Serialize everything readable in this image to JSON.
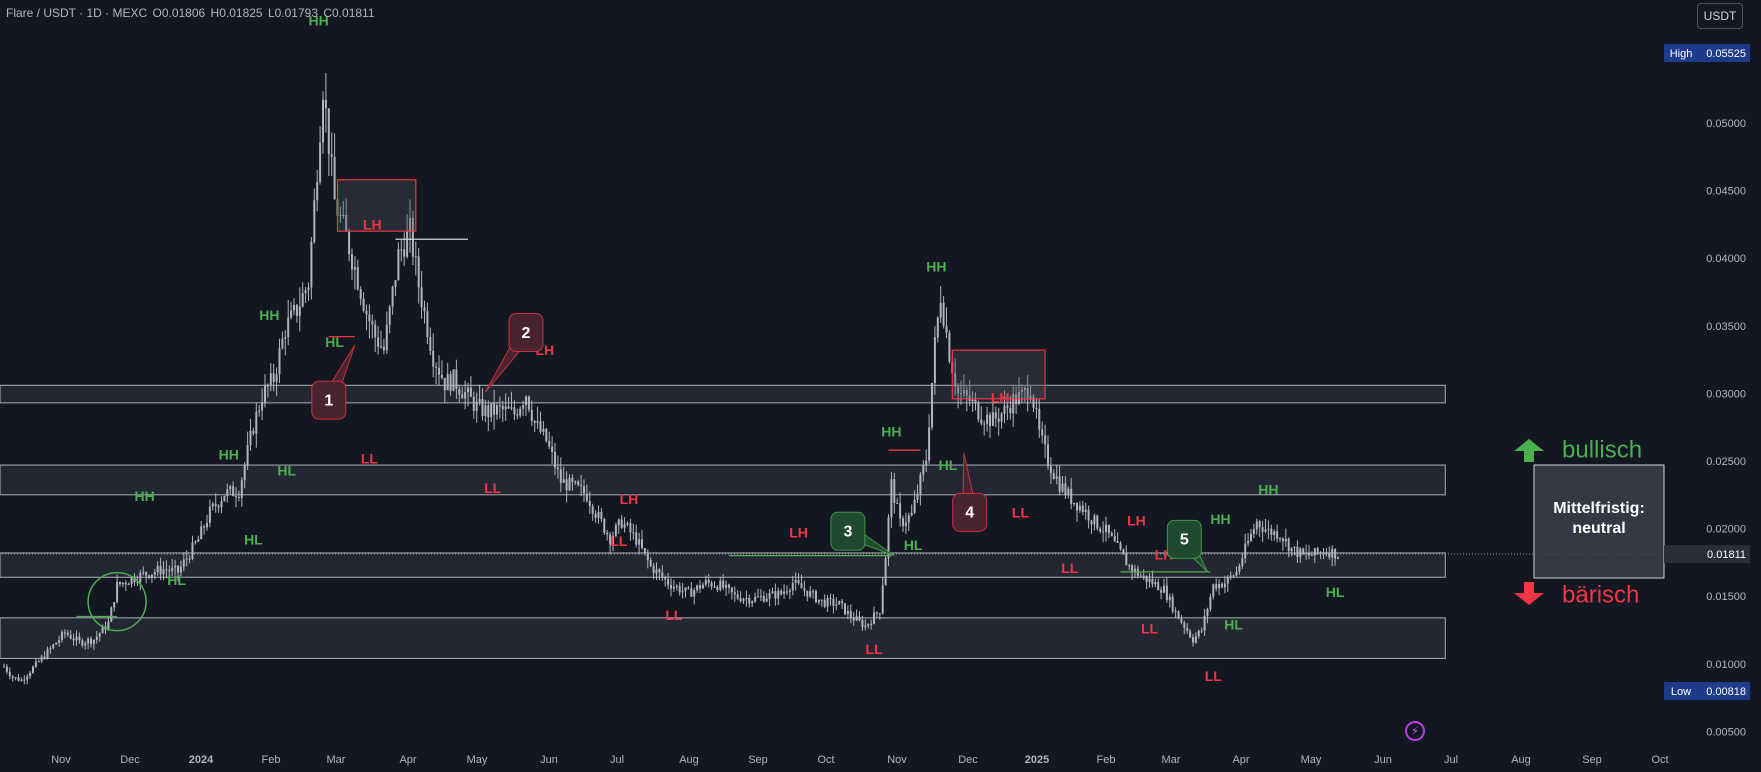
{
  "header": {
    "symbol": "Flare / USDT · 1D · MEXC",
    "open": "O0.01806",
    "high": "H0.01825",
    "low": "L0.01793",
    "close": "C0.01811"
  },
  "currency_button": "USDT",
  "badges": {
    "high_label": "High",
    "high_value": "0.05525",
    "low_label": "Low",
    "low_value": "0.00818",
    "last_price": "0.01811"
  },
  "colors": {
    "background": "#131722",
    "candle": "#b2b5be",
    "bull": "#4caf50",
    "bear": "#f23645",
    "zone": "#2a2e39",
    "callout_bear": "#4a2330",
    "callout_bull": "#1f4a2e"
  },
  "chart_data": {
    "type": "candlestick",
    "title": "Flare / USDT · 1D · MEXC",
    "ylim": [
      0.0046,
      0.0585
    ],
    "y_ticks": [
      "0.05000",
      "0.04500",
      "0.04000",
      "0.03500",
      "0.03000",
      "0.02500",
      "0.02000",
      "0.01500",
      "0.01000",
      "0.00500"
    ],
    "x_ticks": [
      "Nov",
      "Dec",
      "2024",
      "Feb",
      "Mar",
      "Apr",
      "May",
      "Jun",
      "Jul",
      "Aug",
      "Sep",
      "Oct",
      "Nov",
      "Dec",
      "2025",
      "Feb",
      "Mar",
      "Apr",
      "May",
      "Jun",
      "Jul",
      "Aug",
      "Sep",
      "Oct"
    ],
    "price_path": [
      [
        0,
        0.0098
      ],
      [
        3,
        0.009
      ],
      [
        6,
        0.0088
      ],
      [
        10,
        0.0097
      ],
      [
        16,
        0.0111
      ],
      [
        21,
        0.0123
      ],
      [
        26,
        0.0116
      ],
      [
        31,
        0.0118
      ],
      [
        36,
        0.013
      ],
      [
        39,
        0.0158
      ],
      [
        43,
        0.0162
      ],
      [
        48,
        0.0166
      ],
      [
        55,
        0.017
      ],
      [
        60,
        0.0168
      ],
      [
        67,
        0.0192
      ],
      [
        71,
        0.0212
      ],
      [
        76,
        0.0226
      ],
      [
        81,
        0.0228
      ],
      [
        86,
        0.0276
      ],
      [
        89,
        0.0298
      ],
      [
        93,
        0.0311
      ],
      [
        97,
        0.0348
      ],
      [
        101,
        0.0362
      ],
      [
        105,
        0.0382
      ],
      [
        108,
        0.0468
      ],
      [
        110,
        0.0528
      ],
      [
        114,
        0.0442
      ],
      [
        118,
        0.0416
      ],
      [
        122,
        0.0385
      ],
      [
        125,
        0.036
      ],
      [
        128,
        0.0342
      ],
      [
        131,
        0.0332
      ],
      [
        136,
        0.0402
      ],
      [
        140,
        0.042
      ],
      [
        143,
        0.038
      ],
      [
        148,
        0.0328
      ],
      [
        152,
        0.0308
      ],
      [
        155,
        0.031
      ],
      [
        159,
        0.03
      ],
      [
        163,
        0.029
      ],
      [
        167,
        0.0286
      ],
      [
        171,
        0.0288
      ],
      [
        176,
        0.0285
      ],
      [
        180,
        0.03
      ],
      [
        183,
        0.0278
      ],
      [
        187,
        0.0265
      ],
      [
        192,
        0.0235
      ],
      [
        197,
        0.023
      ],
      [
        201,
        0.0225
      ],
      [
        204,
        0.0212
      ],
      [
        209,
        0.0193
      ],
      [
        213,
        0.0205
      ],
      [
        218,
        0.0192
      ],
      [
        223,
        0.0172
      ],
      [
        229,
        0.016
      ],
      [
        236,
        0.0152
      ],
      [
        242,
        0.016
      ],
      [
        247,
        0.0158
      ],
      [
        252,
        0.015
      ],
      [
        258,
        0.0148
      ],
      [
        263,
        0.015
      ],
      [
        268,
        0.0152
      ],
      [
        272,
        0.016
      ],
      [
        277,
        0.0153
      ],
      [
        282,
        0.0146
      ],
      [
        288,
        0.0144
      ],
      [
        292,
        0.0135
      ],
      [
        297,
        0.0128
      ],
      [
        302,
        0.014
      ],
      [
        304,
        0.018
      ],
      [
        306,
        0.0233
      ],
      [
        309,
        0.0204
      ],
      [
        313,
        0.021
      ],
      [
        318,
        0.0252
      ],
      [
        321,
        0.0336
      ],
      [
        323,
        0.0373
      ],
      [
        326,
        0.033
      ],
      [
        329,
        0.03
      ],
      [
        333,
        0.0295
      ],
      [
        337,
        0.0284
      ],
      [
        341,
        0.028
      ],
      [
        345,
        0.0287
      ],
      [
        348,
        0.0295
      ],
      [
        351,
        0.0298
      ],
      [
        354,
        0.0305
      ],
      [
        357,
        0.027
      ],
      [
        360,
        0.025
      ],
      [
        364,
        0.0233
      ],
      [
        368,
        0.0222
      ],
      [
        372,
        0.0215
      ],
      [
        376,
        0.0205
      ],
      [
        380,
        0.0198
      ],
      [
        384,
        0.0185
      ],
      [
        388,
        0.0172
      ],
      [
        392,
        0.0165
      ],
      [
        396,
        0.016
      ],
      [
        400,
        0.0155
      ],
      [
        404,
        0.0138
      ],
      [
        407,
        0.0128
      ],
      [
        410,
        0.0118
      ],
      [
        413,
        0.0125
      ],
      [
        417,
        0.0158
      ],
      [
        421,
        0.016
      ],
      [
        425,
        0.0168
      ],
      [
        429,
        0.019
      ],
      [
        432,
        0.0205
      ],
      [
        436,
        0.0198
      ],
      [
        440,
        0.0196
      ],
      [
        444,
        0.0185
      ],
      [
        448,
        0.018
      ],
      [
        452,
        0.0181
      ],
      [
        456,
        0.0184
      ],
      [
        460,
        0.0181
      ]
    ],
    "markers": [
      {
        "text": "HH",
        "color": "bull",
        "day": 108.5,
        "price": 0.0575
      },
      {
        "text": "HL",
        "color": "bull",
        "day": 114,
        "price": 0.0337
      },
      {
        "text": "LL",
        "color": "bear",
        "day": 126,
        "price": 0.0251
      },
      {
        "text": "LH",
        "color": "bear",
        "day": 127,
        "price": 0.0424
      },
      {
        "text": "HH",
        "color": "bull",
        "day": 91.5,
        "price": 0.0357
      },
      {
        "text": "HH",
        "color": "bull",
        "day": 77.5,
        "price": 0.0254
      },
      {
        "text": "HL",
        "color": "bull",
        "day": 97.5,
        "price": 0.0242
      },
      {
        "text": "HL",
        "color": "bull",
        "day": 86,
        "price": 0.0191
      },
      {
        "text": "HH",
        "color": "bull",
        "day": 48.5,
        "price": 0.0223
      },
      {
        "text": "HL",
        "color": "bull",
        "day": 59.5,
        "price": 0.0161
      },
      {
        "text": "LL",
        "color": "bear",
        "day": 168.5,
        "price": 0.0229
      },
      {
        "text": "LH",
        "color": "bear",
        "day": 186.5,
        "price": 0.0331
      },
      {
        "text": "LH",
        "color": "bear",
        "day": 215.5,
        "price": 0.0221
      },
      {
        "text": "LL",
        "color": "bear",
        "day": 212,
        "price": 0.019
      },
      {
        "text": "LL",
        "color": "bear",
        "day": 231,
        "price": 0.0135
      },
      {
        "text": "LH",
        "color": "bear",
        "day": 274,
        "price": 0.0196
      },
      {
        "text": "LL",
        "color": "bear",
        "day": 300,
        "price": 0.011
      },
      {
        "text": "HH",
        "color": "bull",
        "day": 306,
        "price": 0.0271
      },
      {
        "text": "HL",
        "color": "bull",
        "day": 313.5,
        "price": 0.0187
      },
      {
        "text": "HH",
        "color": "bull",
        "day": 321.5,
        "price": 0.0393
      },
      {
        "text": "LH",
        "color": "bear",
        "day": 343.5,
        "price": 0.0296
      },
      {
        "text": "HL",
        "color": "bull",
        "day": 325.5,
        "price": 0.0246
      },
      {
        "text": "LL",
        "color": "bear",
        "day": 350.5,
        "price": 0.0211
      },
      {
        "text": "LL",
        "color": "bear",
        "day": 367.5,
        "price": 0.017
      },
      {
        "text": "LH",
        "color": "bear",
        "day": 390.5,
        "price": 0.0205
      },
      {
        "text": "LH",
        "color": "bear",
        "day": 400,
        "price": 0.018
      },
      {
        "text": "LL",
        "color": "bear",
        "day": 395,
        "price": 0.0125
      },
      {
        "text": "LL",
        "color": "bear",
        "day": 417,
        "price": 0.009
      },
      {
        "text": "HH",
        "color": "bull",
        "day": 419.5,
        "price": 0.0206
      },
      {
        "text": "HL",
        "color": "bull",
        "day": 424,
        "price": 0.0128
      },
      {
        "text": "HH",
        "color": "bull",
        "day": 436,
        "price": 0.0228
      },
      {
        "text": "HL",
        "color": "bull",
        "day": 459,
        "price": 0.0152
      }
    ],
    "zones": [
      {
        "from": 0.0293,
        "to": 0.0306,
        "start_day": 0,
        "end_day": 497
      },
      {
        "from": 0.0225,
        "to": 0.0247,
        "start_day": 0,
        "end_day": 497
      },
      {
        "from": 0.0164,
        "to": 0.0182,
        "start_day": 0,
        "end_day": 497
      },
      {
        "from": 0.0104,
        "to": 0.0134,
        "start_day": 0,
        "end_day": 497
      }
    ],
    "lh_boxes": [
      {
        "from": 0.042,
        "to": 0.0458,
        "start_day": 115,
        "end_day": 142
      },
      {
        "from": 0.0296,
        "to": 0.0332,
        "start_day": 327,
        "end_day": 359
      }
    ],
    "callouts": [
      {
        "num": "1",
        "kind": "bear",
        "target_day": 121,
        "target_price": 0.0336,
        "anchor_day": 112,
        "anchor_price": 0.0295
      },
      {
        "num": "2",
        "kind": "bear",
        "target_day": 166,
        "target_price": 0.0301,
        "anchor_day": 180,
        "anchor_price": 0.0345
      },
      {
        "num": "3",
        "kind": "bull",
        "target_day": 307,
        "target_price": 0.018,
        "anchor_day": 291,
        "anchor_price": 0.0198
      },
      {
        "num": "4",
        "kind": "bear",
        "target_day": 331,
        "target_price": 0.0256,
        "anchor_day": 333,
        "anchor_price": 0.0212
      },
      {
        "num": "5",
        "kind": "bull",
        "target_day": 415,
        "target_price": 0.0168,
        "anchor_day": 407,
        "anchor_price": 0.0192
      }
    ],
    "annotations": {
      "bullish_label": "bullisch",
      "bearish_label": "bärisch",
      "summary_title": "Mittelfristig:",
      "summary_value": "neutral",
      "last_price_line": 0.01811
    }
  }
}
